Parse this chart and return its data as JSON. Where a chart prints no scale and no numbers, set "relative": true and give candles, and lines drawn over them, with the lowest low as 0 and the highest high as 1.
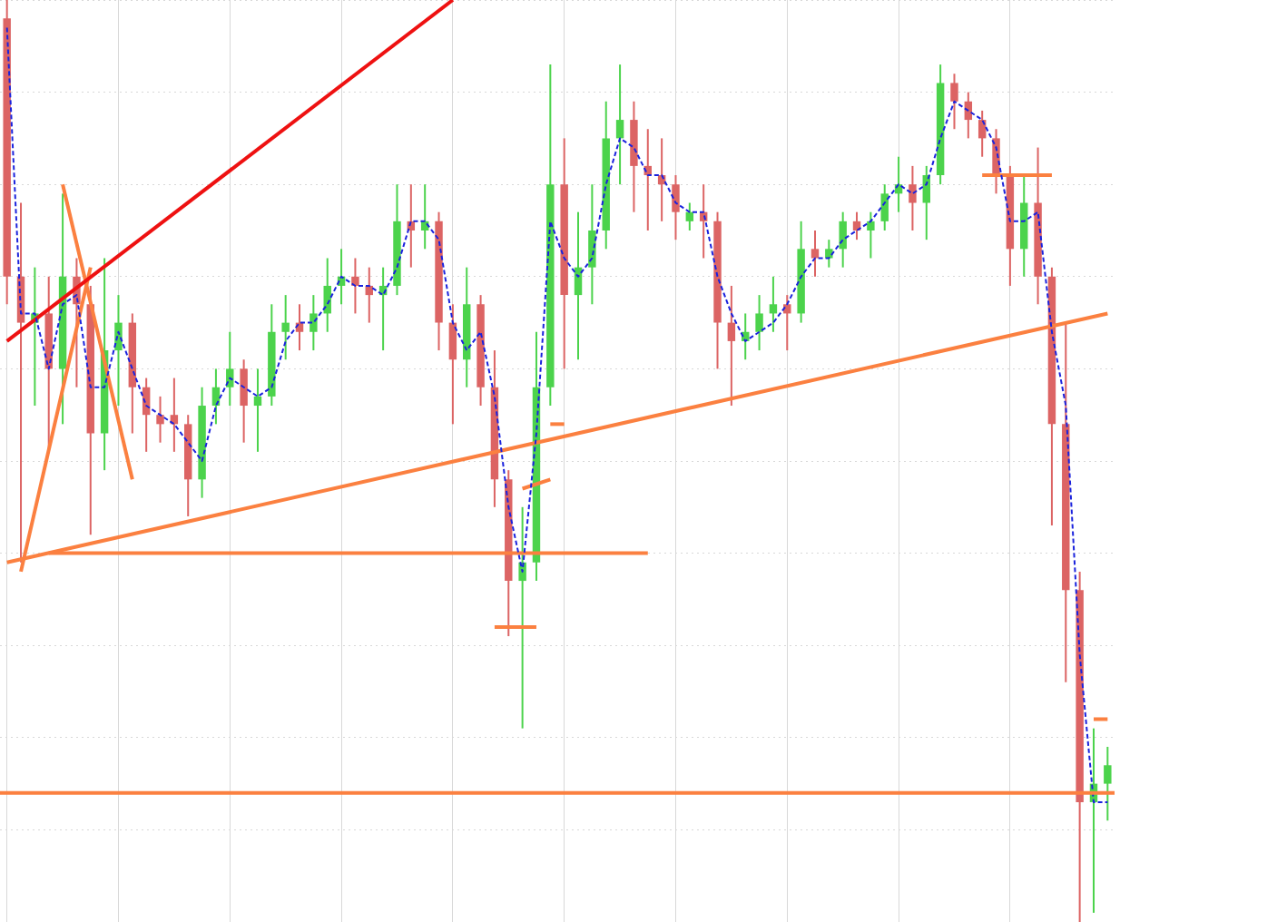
{
  "chart_data": {
    "type": "candlestick",
    "relative": true,
    "grid": true,
    "legend": false,
    "marker": "none",
    "categories": [
      null,
      null,
      null,
      null,
      null,
      null,
      null,
      null,
      null,
      null,
      null,
      null,
      null,
      null,
      null,
      null,
      null,
      null,
      null,
      null,
      null,
      null,
      null,
      null,
      null,
      null,
      null,
      null,
      null,
      null,
      null,
      null,
      null,
      null,
      null,
      null,
      null,
      null,
      null,
      null,
      null,
      null,
      null,
      null,
      null,
      null,
      null,
      null,
      null,
      null,
      null,
      null,
      null,
      null,
      null,
      null,
      null,
      null,
      null,
      null,
      null,
      null,
      null,
      null,
      null,
      null,
      null,
      null,
      null,
      null,
      null,
      null,
      null,
      null,
      null,
      null,
      null,
      null,
      null,
      null
    ],
    "ohlc": [
      [
        0.98,
        1.0,
        0.67,
        0.7
      ],
      [
        0.7,
        0.78,
        0.39,
        0.65
      ],
      [
        0.65,
        0.71,
        0.56,
        0.66
      ],
      [
        0.66,
        0.7,
        0.51,
        0.6
      ],
      [
        0.6,
        0.79,
        0.54,
        0.7
      ],
      [
        0.7,
        0.72,
        0.58,
        0.67
      ],
      [
        0.67,
        0.69,
        0.42,
        0.53
      ],
      [
        0.53,
        0.72,
        0.49,
        0.62
      ],
      [
        0.62,
        0.68,
        0.56,
        0.65
      ],
      [
        0.65,
        0.66,
        0.53,
        0.58
      ],
      [
        0.58,
        0.59,
        0.51,
        0.55
      ],
      [
        0.55,
        0.57,
        0.52,
        0.54
      ],
      [
        0.55,
        0.59,
        0.51,
        0.54
      ],
      [
        0.54,
        0.55,
        0.44,
        0.48
      ],
      [
        0.48,
        0.58,
        0.46,
        0.56
      ],
      [
        0.56,
        0.6,
        0.54,
        0.58
      ],
      [
        0.58,
        0.64,
        0.56,
        0.6
      ],
      [
        0.6,
        0.61,
        0.52,
        0.56
      ],
      [
        0.56,
        0.6,
        0.51,
        0.57
      ],
      [
        0.57,
        0.67,
        0.56,
        0.64
      ],
      [
        0.64,
        0.68,
        0.61,
        0.65
      ],
      [
        0.65,
        0.67,
        0.62,
        0.64
      ],
      [
        0.64,
        0.68,
        0.62,
        0.66
      ],
      [
        0.66,
        0.72,
        0.64,
        0.69
      ],
      [
        0.69,
        0.73,
        0.67,
        0.7
      ],
      [
        0.7,
        0.72,
        0.66,
        0.69
      ],
      [
        0.69,
        0.71,
        0.65,
        0.68
      ],
      [
        0.68,
        0.71,
        0.62,
        0.69
      ],
      [
        0.69,
        0.8,
        0.68,
        0.76
      ],
      [
        0.76,
        0.8,
        0.71,
        0.75
      ],
      [
        0.75,
        0.8,
        0.73,
        0.76
      ],
      [
        0.76,
        0.77,
        0.62,
        0.65
      ],
      [
        0.65,
        0.67,
        0.54,
        0.61
      ],
      [
        0.61,
        0.71,
        0.58,
        0.67
      ],
      [
        0.67,
        0.68,
        0.56,
        0.58
      ],
      [
        0.58,
        0.62,
        0.45,
        0.48
      ],
      [
        0.48,
        0.49,
        0.31,
        0.37
      ],
      [
        0.37,
        0.45,
        0.21,
        0.39
      ],
      [
        0.39,
        0.64,
        0.37,
        0.58
      ],
      [
        0.58,
        0.93,
        0.56,
        0.8
      ],
      [
        0.8,
        0.85,
        0.6,
        0.68
      ],
      [
        0.68,
        0.77,
        0.61,
        0.71
      ],
      [
        0.71,
        0.8,
        0.67,
        0.75
      ],
      [
        0.75,
        0.89,
        0.73,
        0.85
      ],
      [
        0.85,
        0.93,
        0.8,
        0.87
      ],
      [
        0.87,
        0.89,
        0.77,
        0.82
      ],
      [
        0.82,
        0.86,
        0.75,
        0.81
      ],
      [
        0.81,
        0.85,
        0.76,
        0.8
      ],
      [
        0.8,
        0.81,
        0.74,
        0.77
      ],
      [
        0.76,
        0.78,
        0.75,
        0.77
      ],
      [
        0.77,
        0.8,
        0.72,
        0.76
      ],
      [
        0.76,
        0.77,
        0.6,
        0.65
      ],
      [
        0.65,
        0.69,
        0.56,
        0.63
      ],
      [
        0.63,
        0.66,
        0.61,
        0.64
      ],
      [
        0.64,
        0.68,
        0.62,
        0.66
      ],
      [
        0.66,
        0.7,
        0.64,
        0.67
      ],
      [
        0.67,
        0.68,
        0.62,
        0.66
      ],
      [
        0.66,
        0.76,
        0.65,
        0.73
      ],
      [
        0.73,
        0.75,
        0.7,
        0.72
      ],
      [
        0.72,
        0.74,
        0.71,
        0.73
      ],
      [
        0.73,
        0.77,
        0.71,
        0.76
      ],
      [
        0.76,
        0.77,
        0.74,
        0.75
      ],
      [
        0.75,
        0.77,
        0.72,
        0.76
      ],
      [
        0.76,
        0.8,
        0.75,
        0.79
      ],
      [
        0.79,
        0.83,
        0.77,
        0.8
      ],
      [
        0.8,
        0.82,
        0.75,
        0.78
      ],
      [
        0.78,
        0.82,
        0.74,
        0.81
      ],
      [
        0.81,
        0.93,
        0.8,
        0.91
      ],
      [
        0.91,
        0.92,
        0.86,
        0.89
      ],
      [
        0.89,
        0.9,
        0.85,
        0.87
      ],
      [
        0.87,
        0.88,
        0.83,
        0.85
      ],
      [
        0.85,
        0.86,
        0.79,
        0.81
      ],
      [
        0.81,
        0.82,
        0.69,
        0.73
      ],
      [
        0.73,
        0.81,
        0.7,
        0.78
      ],
      [
        0.78,
        0.84,
        0.67,
        0.7
      ],
      [
        0.7,
        0.71,
        0.43,
        0.54
      ],
      [
        0.54,
        0.65,
        0.26,
        0.36
      ],
      [
        0.36,
        0.38,
        0.0,
        0.13
      ],
      [
        0.13,
        0.21,
        0.01,
        0.15
      ],
      [
        0.15,
        0.19,
        0.11,
        0.17
      ]
    ],
    "series": [
      {
        "type": "line",
        "color": "#1a22dd",
        "line_style": "dashed",
        "values": [
          0.97,
          0.66,
          0.66,
          0.6,
          0.67,
          0.68,
          0.58,
          0.58,
          0.64,
          0.6,
          0.56,
          0.55,
          0.54,
          0.52,
          0.5,
          0.56,
          0.59,
          0.58,
          0.57,
          0.58,
          0.63,
          0.65,
          0.65,
          0.67,
          0.7,
          0.69,
          0.69,
          0.68,
          0.71,
          0.76,
          0.76,
          0.74,
          0.65,
          0.62,
          0.64,
          0.57,
          0.45,
          0.38,
          0.53,
          0.76,
          0.72,
          0.7,
          0.72,
          0.8,
          0.85,
          0.84,
          0.81,
          0.81,
          0.78,
          0.77,
          0.77,
          0.7,
          0.66,
          0.63,
          0.64,
          0.65,
          0.67,
          0.7,
          0.72,
          0.72,
          0.74,
          0.75,
          0.76,
          0.78,
          0.8,
          0.79,
          0.8,
          0.85,
          0.89,
          0.88,
          0.87,
          0.84,
          0.76,
          0.76,
          0.77,
          0.64,
          0.56,
          0.29,
          0.13,
          0.13
        ]
      },
      {
        "type": "line",
        "color": "#ee1111",
        "line_style": "solid",
        "values": [
          0.63,
          null,
          null,
          null,
          null,
          null,
          null,
          null,
          null,
          null,
          null,
          null,
          null,
          null,
          null,
          null,
          null,
          null,
          null,
          null,
          null,
          null,
          null,
          null,
          null,
          null,
          null,
          null,
          null,
          null,
          null,
          null,
          1.0,
          null,
          null,
          null,
          null,
          null,
          null,
          null,
          null,
          null,
          null,
          null,
          null,
          null,
          null,
          null,
          null,
          null,
          null,
          null,
          null,
          null,
          null,
          null,
          null,
          null,
          null,
          null,
          null,
          null,
          null,
          null,
          null,
          null,
          null,
          null,
          null,
          null,
          null,
          null,
          null,
          null,
          null,
          null,
          null,
          null,
          null,
          null
        ]
      },
      {
        "type": "line",
        "color": "#fb8040",
        "line_style": "solid",
        "values": [
          0.39,
          null,
          null,
          null,
          null,
          null,
          null,
          null,
          null,
          null,
          null,
          null,
          null,
          null,
          null,
          null,
          null,
          null,
          null,
          null,
          null,
          null,
          null,
          null,
          null,
          null,
          null,
          null,
          null,
          null,
          null,
          null,
          null,
          null,
          null,
          null,
          null,
          null,
          null,
          null,
          null,
          null,
          null,
          null,
          null,
          null,
          null,
          null,
          null,
          null,
          null,
          null,
          null,
          null,
          null,
          null,
          null,
          null,
          null,
          null,
          null,
          null,
          null,
          null,
          null,
          null,
          null,
          null,
          null,
          null,
          null,
          null,
          null,
          null,
          null,
          null,
          null,
          null,
          null,
          0.66
        ]
      },
      {
        "type": "line",
        "color": "#fb8040",
        "line_style": "solid",
        "values": [
          null,
          null,
          null,
          0.4,
          null,
          null,
          null,
          null,
          null,
          null,
          null,
          null,
          null,
          null,
          null,
          null,
          null,
          null,
          null,
          null,
          null,
          null,
          null,
          null,
          null,
          null,
          null,
          null,
          null,
          null,
          null,
          null,
          null,
          null,
          null,
          null,
          null,
          null,
          null,
          null,
          null,
          null,
          null,
          null,
          null,
          null,
          0.4,
          null,
          null,
          null,
          null,
          null,
          null,
          null,
          null,
          null,
          null,
          null,
          null,
          null,
          null,
          null,
          null,
          null,
          null,
          null,
          null,
          null,
          null,
          null,
          null,
          null,
          null,
          null,
          null,
          null,
          null,
          null,
          null,
          null
        ]
      },
      {
        "type": "line",
        "color": "#fb8040",
        "line_style": "solid",
        "values": [
          null,
          0.38,
          null,
          null,
          null,
          null,
          0.71,
          null,
          null,
          null,
          null,
          null,
          null,
          null,
          null,
          null,
          null,
          null,
          null,
          null,
          null,
          null,
          null,
          null,
          null,
          null,
          null,
          null,
          null,
          null,
          null,
          null,
          null,
          null,
          null,
          null,
          null,
          null,
          null,
          null,
          null,
          null,
          null,
          null,
          null,
          null,
          null,
          null,
          null,
          null,
          null,
          null,
          null,
          null,
          null,
          null,
          null,
          null,
          null,
          null,
          null,
          null,
          null,
          null,
          null,
          null,
          null,
          null,
          null,
          null,
          null,
          null,
          null,
          null,
          null,
          null,
          null,
          null,
          null,
          null
        ]
      },
      {
        "type": "line",
        "color": "#fb8040",
        "line_style": "solid",
        "values": [
          null,
          null,
          null,
          null,
          0.8,
          null,
          null,
          null,
          null,
          0.48,
          null,
          null,
          null,
          null,
          null,
          null,
          null,
          null,
          null,
          null,
          null,
          null,
          null,
          null,
          null,
          null,
          null,
          null,
          null,
          null,
          null,
          null,
          null,
          null,
          null,
          null,
          null,
          null,
          null,
          null,
          null,
          null,
          null,
          null,
          null,
          null,
          null,
          null,
          null,
          null,
          null,
          null,
          null,
          null,
          null,
          null,
          null,
          null,
          null,
          null,
          null,
          null,
          null,
          null,
          null,
          null,
          null,
          null,
          null,
          null,
          null,
          null,
          null,
          null,
          null,
          null,
          null,
          null,
          null,
          null
        ]
      },
      {
        "type": "line",
        "color": "#fb8040",
        "line_style": "solid",
        "values": [
          null,
          null,
          null,
          null,
          null,
          null,
          null,
          null,
          null,
          null,
          null,
          null,
          null,
          null,
          null,
          null,
          null,
          null,
          null,
          null,
          null,
          null,
          null,
          null,
          null,
          null,
          null,
          null,
          null,
          null,
          null,
          null,
          null,
          null,
          null,
          0.32,
          null,
          null,
          0.32,
          null,
          null,
          null,
          null,
          null,
          null,
          null,
          null,
          null,
          null,
          null,
          null,
          null,
          null,
          null,
          null,
          null,
          null,
          null,
          null,
          null,
          null,
          null,
          null,
          null,
          null,
          null,
          null,
          null,
          null,
          null,
          null,
          null,
          null,
          null,
          null,
          null,
          null,
          null,
          null,
          null
        ]
      },
      {
        "type": "line",
        "color": "#fb8040",
        "line_style": "solid",
        "values": [
          null,
          null,
          null,
          null,
          null,
          null,
          null,
          null,
          null,
          null,
          null,
          null,
          null,
          null,
          null,
          null,
          null,
          null,
          null,
          null,
          null,
          null,
          null,
          null,
          null,
          null,
          null,
          null,
          null,
          null,
          null,
          null,
          null,
          null,
          null,
          null,
          null,
          0.47,
          null,
          0.48,
          null,
          null,
          null,
          null,
          null,
          null,
          null,
          null,
          null,
          null,
          null,
          null,
          null,
          null,
          null,
          null,
          null,
          null,
          null,
          null,
          null,
          null,
          null,
          null,
          null,
          null,
          null,
          null,
          null,
          null,
          null,
          null,
          null,
          null,
          null,
          null,
          null,
          null,
          null,
          null
        ]
      },
      {
        "type": "line",
        "color": "#fb8040",
        "line_style": "solid",
        "values": [
          null,
          null,
          null,
          null,
          null,
          null,
          null,
          null,
          null,
          null,
          null,
          null,
          null,
          null,
          null,
          null,
          null,
          null,
          null,
          null,
          null,
          null,
          null,
          null,
          null,
          null,
          null,
          null,
          null,
          null,
          null,
          null,
          null,
          null,
          null,
          null,
          null,
          null,
          null,
          0.54,
          0.54,
          null,
          null,
          null,
          null,
          null,
          null,
          null,
          null,
          null,
          null,
          null,
          null,
          null,
          null,
          null,
          null,
          null,
          null,
          null,
          null,
          null,
          null,
          null,
          null,
          null,
          null,
          null,
          null,
          null,
          null,
          null,
          null,
          null,
          null,
          null,
          null,
          null,
          null,
          null
        ]
      },
      {
        "type": "line",
        "color": "#fb8040",
        "line_style": "solid",
        "values": [
          null,
          null,
          null,
          null,
          null,
          null,
          null,
          null,
          null,
          null,
          null,
          null,
          null,
          null,
          null,
          null,
          null,
          null,
          null,
          null,
          null,
          null,
          null,
          null,
          null,
          null,
          null,
          null,
          null,
          null,
          null,
          null,
          null,
          null,
          null,
          null,
          null,
          null,
          null,
          null,
          null,
          null,
          null,
          null,
          null,
          null,
          null,
          null,
          null,
          null,
          null,
          null,
          null,
          null,
          null,
          null,
          null,
          null,
          null,
          null,
          null,
          null,
          null,
          null,
          null,
          null,
          null,
          null,
          null,
          null,
          0.81,
          null,
          null,
          null,
          null,
          0.81,
          null,
          null,
          null,
          null
        ]
      },
      {
        "type": "line",
        "color": "#fb8040",
        "line_style": "solid",
        "values": [
          null,
          null,
          null,
          null,
          null,
          null,
          null,
          null,
          null,
          null,
          null,
          null,
          null,
          null,
          null,
          null,
          null,
          null,
          null,
          null,
          null,
          null,
          null,
          null,
          null,
          null,
          null,
          null,
          null,
          null,
          null,
          null,
          null,
          null,
          null,
          null,
          null,
          null,
          null,
          null,
          null,
          null,
          null,
          null,
          null,
          null,
          null,
          null,
          null,
          null,
          null,
          null,
          null,
          null,
          null,
          null,
          null,
          null,
          null,
          null,
          null,
          null,
          null,
          null,
          null,
          null,
          null,
          null,
          null,
          null,
          null,
          null,
          null,
          null,
          null,
          null,
          null,
          null,
          0.22,
          0.22
        ]
      }
    ],
    "ref_lines": [
      {
        "axis": "y",
        "value": 0.14,
        "color": "#fb8040"
      }
    ]
  }
}
